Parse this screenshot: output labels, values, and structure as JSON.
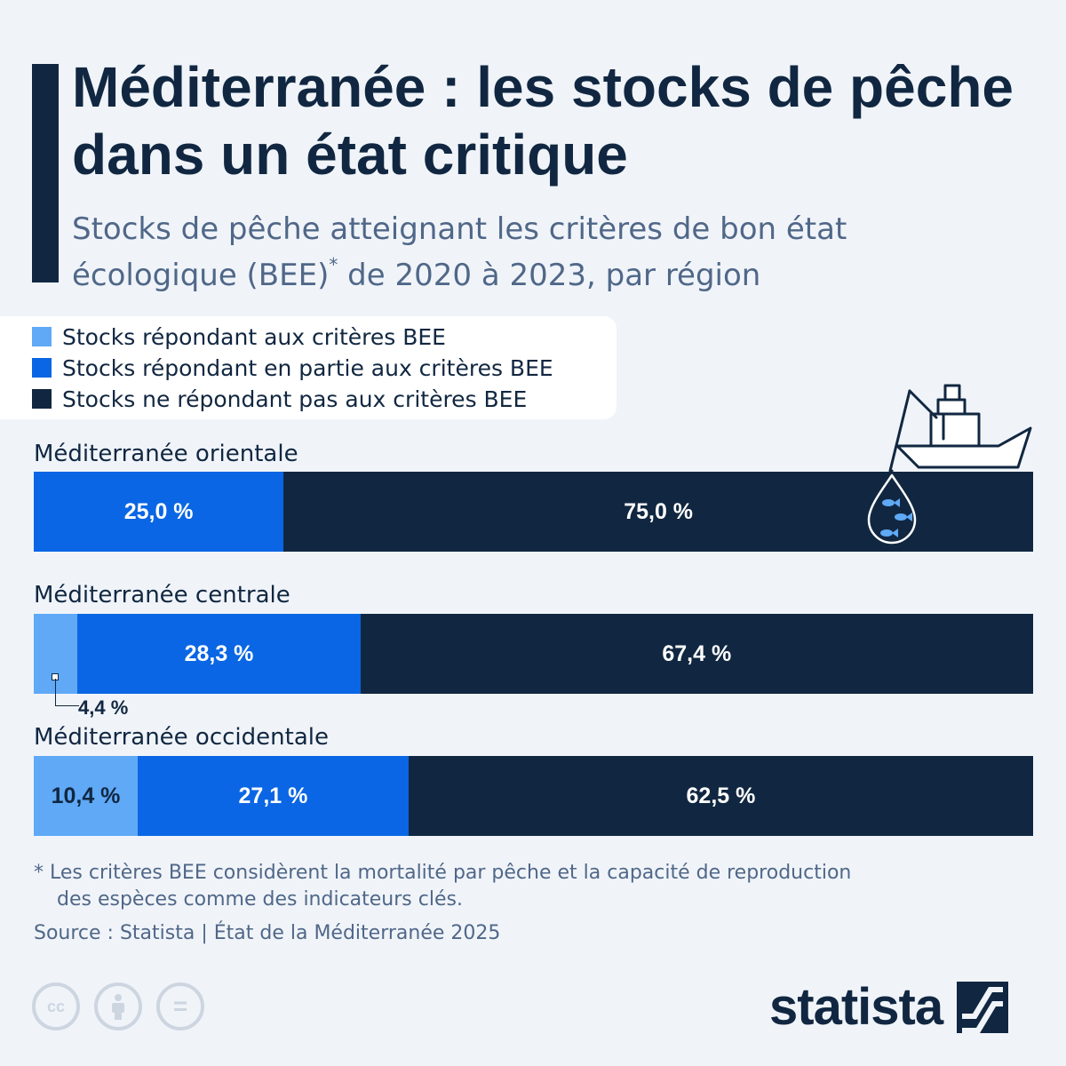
{
  "title": "Méditerranée : les stocks de pêche dans un état critique",
  "subtitle_main": "Stocks de pêche atteignant les critères de bon état écologique (BEE)",
  "subtitle_sup": "*",
  "subtitle_tail": " de 2020 à 2023, par région",
  "colors": {
    "background": "#f0f4f9",
    "light_blue": "#5fa9f6",
    "blue": "#0a66e4",
    "navy": "#112741"
  },
  "chart_data": {
    "type": "bar",
    "orientation": "horizontal",
    "stacked": true,
    "xlim": [
      0,
      100
    ],
    "unit": "%",
    "legend_position": "top-left",
    "series": [
      {
        "name": "Stocks répondant aux critères BEE",
        "color": "#5fa9f6",
        "text_color": "#112741",
        "values": [
          0.0,
          4.4,
          10.4
        ]
      },
      {
        "name": "Stocks répondant en partie aux critères BEE",
        "color": "#0a66e4",
        "text_color": "#ffffff",
        "values": [
          25.0,
          28.3,
          27.1
        ]
      },
      {
        "name": "Stocks ne répondant pas aux critères BEE",
        "color": "#112741",
        "text_color": "#ffffff",
        "values": [
          75.0,
          67.4,
          62.5
        ]
      }
    ],
    "categories": [
      "Méditerranée orientale",
      "Méditerranée centrale",
      "Méditerranée occidentale"
    ],
    "data_labels": [
      [
        "",
        "25,0 %",
        "75,0 %"
      ],
      [
        "4,4 %",
        "28,3 %",
        "67,4 %"
      ],
      [
        "10,4 %",
        "27,1 %",
        "62,5 %"
      ]
    ]
  },
  "footnote_line1": "* Les critères BEE considèrent la mortalité par pêche et la capacité de reproduction",
  "footnote_line2": "des espèces comme des indicateurs clés.",
  "source": "Source : Statista | État de la Méditerranée 2025",
  "license_icons": [
    {
      "icon": "creative-commons-icon",
      "glyph": "cc"
    },
    {
      "icon": "attribution-icon",
      "glyph": ""
    },
    {
      "icon": "no-derivatives-icon",
      "glyph": "="
    }
  ],
  "brand": "statista"
}
